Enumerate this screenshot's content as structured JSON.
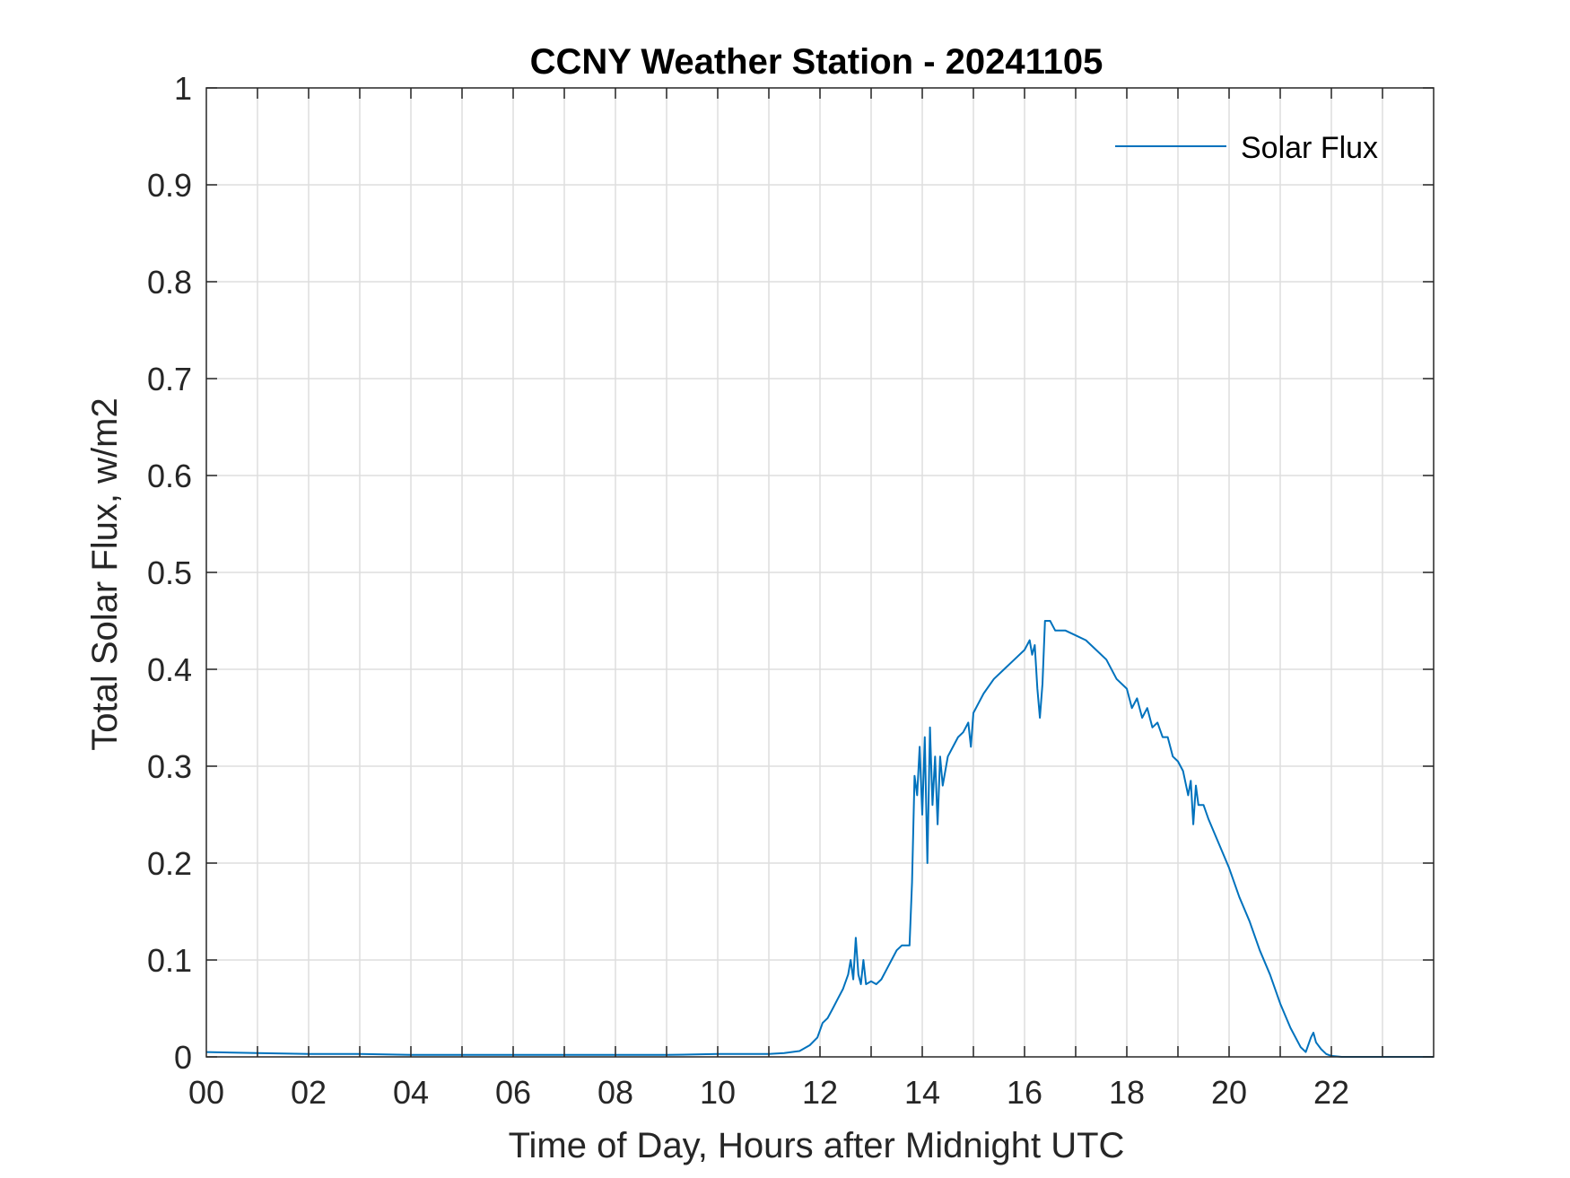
{
  "chart_data": {
    "type": "line",
    "title": "CCNY Weather Station - 20241105",
    "xlabel": "Time of Day, Hours after Midnight UTC",
    "ylabel": "Total Solar Flux, w/m2",
    "xlim": [
      0,
      24
    ],
    "ylim": [
      0,
      1
    ],
    "xticks": [
      0,
      2,
      4,
      6,
      8,
      10,
      12,
      14,
      16,
      18,
      20,
      22
    ],
    "xtick_labels": [
      "00",
      "02",
      "04",
      "06",
      "08",
      "10",
      "12",
      "14",
      "16",
      "18",
      "20",
      "22"
    ],
    "yticks": [
      0,
      0.1,
      0.2,
      0.3,
      0.4,
      0.5,
      0.6,
      0.7,
      0.8,
      0.9,
      1
    ],
    "ytick_labels": [
      "0",
      "0.1",
      "0.2",
      "0.3",
      "0.4",
      "0.5",
      "0.6",
      "0.7",
      "0.8",
      "0.9",
      "1"
    ],
    "grid": true,
    "legend_position": "top-right",
    "series": [
      {
        "name": "Solar Flux",
        "color": "#0072BD",
        "x": [
          0,
          1,
          2,
          3,
          4,
          5,
          6,
          7,
          8,
          9,
          10,
          11,
          11.3,
          11.6,
          11.8,
          11.95,
          12.05,
          12.15,
          12.25,
          12.35,
          12.45,
          12.55,
          12.6,
          12.65,
          12.7,
          12.75,
          12.8,
          12.85,
          12.9,
          13.0,
          13.1,
          13.2,
          13.3,
          13.4,
          13.5,
          13.6,
          13.75,
          13.8,
          13.85,
          13.9,
          13.95,
          14.0,
          14.05,
          14.1,
          14.15,
          14.2,
          14.25,
          14.3,
          14.35,
          14.4,
          14.5,
          14.6,
          14.7,
          14.8,
          14.9,
          14.95,
          15.0,
          15.1,
          15.2,
          15.4,
          15.6,
          15.8,
          16.0,
          16.1,
          16.15,
          16.2,
          16.25,
          16.3,
          16.35,
          16.4,
          16.5,
          16.6,
          16.8,
          17.0,
          17.2,
          17.4,
          17.6,
          17.8,
          18.0,
          18.1,
          18.2,
          18.3,
          18.4,
          18.5,
          18.6,
          18.7,
          18.8,
          18.9,
          19.0,
          19.1,
          19.2,
          19.25,
          19.3,
          19.35,
          19.4,
          19.5,
          19.6,
          19.8,
          20.0,
          20.2,
          20.4,
          20.6,
          20.8,
          21.0,
          21.2,
          21.4,
          21.5,
          21.6,
          21.65,
          21.7,
          21.8,
          21.9,
          22.0,
          22.2,
          22.5,
          23.0,
          24.0
        ],
        "values": [
          0.005,
          0.004,
          0.003,
          0.003,
          0.002,
          0.002,
          0.002,
          0.002,
          0.002,
          0.002,
          0.003,
          0.003,
          0.004,
          0.006,
          0.012,
          0.02,
          0.035,
          0.04,
          0.05,
          0.06,
          0.07,
          0.085,
          0.1,
          0.08,
          0.123,
          0.085,
          0.075,
          0.1,
          0.075,
          0.078,
          0.075,
          0.08,
          0.09,
          0.1,
          0.11,
          0.115,
          0.115,
          0.18,
          0.29,
          0.27,
          0.32,
          0.25,
          0.33,
          0.2,
          0.34,
          0.26,
          0.31,
          0.24,
          0.31,
          0.28,
          0.31,
          0.32,
          0.33,
          0.335,
          0.345,
          0.32,
          0.355,
          0.365,
          0.375,
          0.39,
          0.4,
          0.41,
          0.42,
          0.43,
          0.415,
          0.425,
          0.38,
          0.35,
          0.385,
          0.45,
          0.45,
          0.44,
          0.44,
          0.435,
          0.43,
          0.42,
          0.41,
          0.39,
          0.38,
          0.36,
          0.37,
          0.35,
          0.36,
          0.34,
          0.345,
          0.33,
          0.33,
          0.31,
          0.305,
          0.295,
          0.27,
          0.285,
          0.24,
          0.28,
          0.26,
          0.26,
          0.245,
          0.22,
          0.195,
          0.165,
          0.14,
          0.11,
          0.085,
          0.055,
          0.03,
          0.01,
          0.005,
          0.02,
          0.025,
          0.015,
          0.008,
          0.003,
          0.001,
          0.0,
          0.0,
          0.0,
          0.0
        ]
      }
    ]
  }
}
